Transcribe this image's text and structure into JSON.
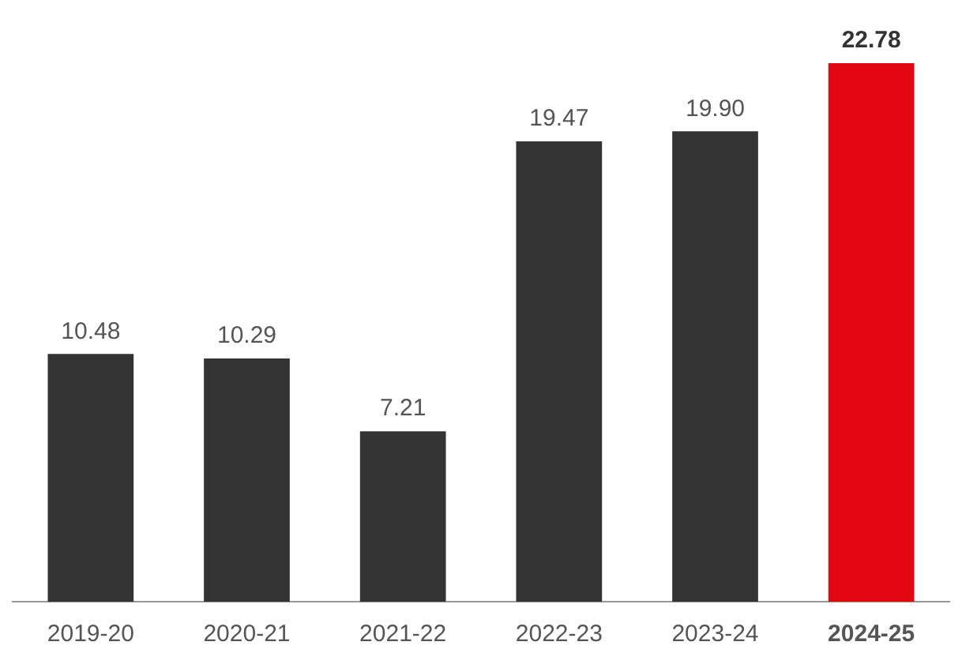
{
  "chart_data": {
    "type": "bar",
    "categories": [
      "2019-20",
      "2020-21",
      "2021-22",
      "2022-23",
      "2023-24",
      "2024-25"
    ],
    "values": [
      10.48,
      10.29,
      7.21,
      19.47,
      19.9,
      22.78
    ],
    "colors": [
      "#333333",
      "#333333",
      "#333333",
      "#333333",
      "#333333",
      "#e30613"
    ],
    "value_labels": [
      "10.48",
      "10.29",
      "7.21",
      "19.47",
      "19.90",
      "22.78"
    ],
    "grid": false,
    "legend": false
  }
}
